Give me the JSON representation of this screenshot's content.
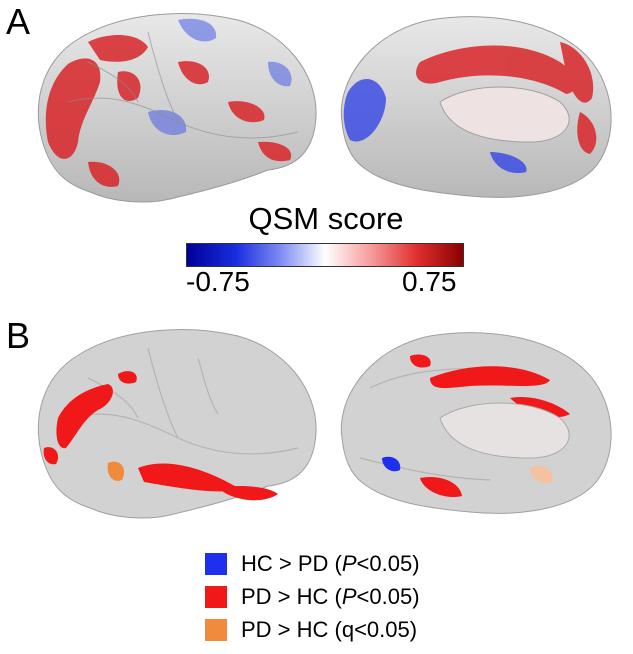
{
  "panels": {
    "a": "A",
    "b": "B"
  },
  "colorbar": {
    "title": "QSM score",
    "min_label": "-0.75",
    "max_label": "0.75",
    "colors": [
      "#00009a",
      "#ffffff",
      "#8a0000"
    ]
  },
  "legend": [
    {
      "swatch": "#1f2ff0",
      "pre": "HC > PD (",
      "italic": "P",
      "post": "<0.05)"
    },
    {
      "swatch": "#f01818",
      "pre": "PD > HC (",
      "italic": "P",
      "post": "<0.05)"
    },
    {
      "swatch": "#f08a3c",
      "pre": "PD > HC (q<0.05)",
      "italic": "",
      "post": ""
    }
  ]
}
